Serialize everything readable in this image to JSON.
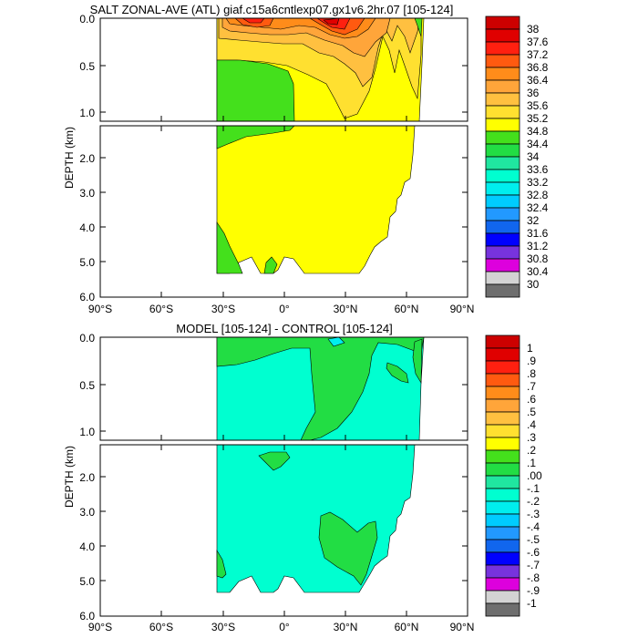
{
  "chart_data": [
    {
      "type": "contour",
      "title": "SALT ZONAL-AVE (ATL) giaf.c15a6cntlexp07.gx1v6.2hr.07 [105-124]",
      "xlabel": "",
      "ylabel": "DEPTH (km)",
      "xlim": [
        -90,
        90
      ],
      "ylim": [
        6.0,
        0.0
      ],
      "depth_break_km": 1.1,
      "x_tick_labels": [
        "90°S",
        "60°S",
        "30°S",
        "0°",
        "30°N",
        "60°N",
        "90°N"
      ],
      "y_tick_labels_top": [
        "0.0",
        "0.5",
        "1.0"
      ],
      "y_tick_labels_bottom": [
        "2.0",
        "3.0",
        "4.0",
        "5.0",
        "6.0"
      ],
      "colorbar_labels": [
        "38",
        "37.6",
        "37.2",
        "36.8",
        "36.4",
        "36",
        "35.6",
        "35.2",
        "34.8",
        "34.4",
        "34",
        "33.6",
        "33.2",
        "32.8",
        "32.4",
        "32",
        "31.6",
        "31.2",
        "30.8",
        "30.4",
        "30"
      ],
      "colorbar_colors": [
        "#cc0000",
        "#e00000",
        "#ff2010",
        "#ff5a10",
        "#ff8c1a",
        "#ffa53a",
        "#ffc040",
        "#ffe030",
        "#ffff00",
        "#44e01c",
        "#22dd44",
        "#20e6a0",
        "#00ffd0",
        "#00eeee",
        "#00ccff",
        "#2299ff",
        "#1166ee",
        "#0000ff",
        "#7733dd",
        "#dd00dd",
        "#d3d3d3",
        "#6e6e6e"
      ]
    },
    {
      "type": "contour",
      "title": "MODEL [105-124] - CONTROL [105-124]",
      "xlabel": "",
      "ylabel": "DEPTH (km)",
      "xlim": [
        -90,
        90
      ],
      "ylim": [
        6.0,
        0.0
      ],
      "depth_break_km": 1.1,
      "x_tick_labels": [
        "90°S",
        "60°S",
        "30°S",
        "0°",
        "30°N",
        "60°N",
        "90°N"
      ],
      "y_tick_labels_top": [
        "0.0",
        "0.5",
        "1.0"
      ],
      "y_tick_labels_bottom": [
        "2.0",
        "3.0",
        "4.0",
        "5.0",
        "6.0"
      ],
      "colorbar_labels": [
        "1",
        ".9",
        ".8",
        ".7",
        ".6",
        ".5",
        ".4",
        ".3",
        ".2",
        ".1",
        ".00",
        "-.1",
        "-.2",
        "-.3",
        "-.4",
        "-.5",
        "-.6",
        "-.7",
        "-.8",
        "-.9",
        "-1"
      ],
      "colorbar_colors": [
        "#cc0000",
        "#e00000",
        "#ff2010",
        "#ff5a10",
        "#ff8c1a",
        "#ffa53a",
        "#ffc040",
        "#ffe030",
        "#ffff00",
        "#44e01c",
        "#22dd44",
        "#20e6a0",
        "#00ffd0",
        "#00eeee",
        "#00ccff",
        "#2299ff",
        "#1166ee",
        "#0000ff",
        "#7733dd",
        "#dd00dd",
        "#d3d3d3",
        "#6e6e6e"
      ]
    }
  ]
}
